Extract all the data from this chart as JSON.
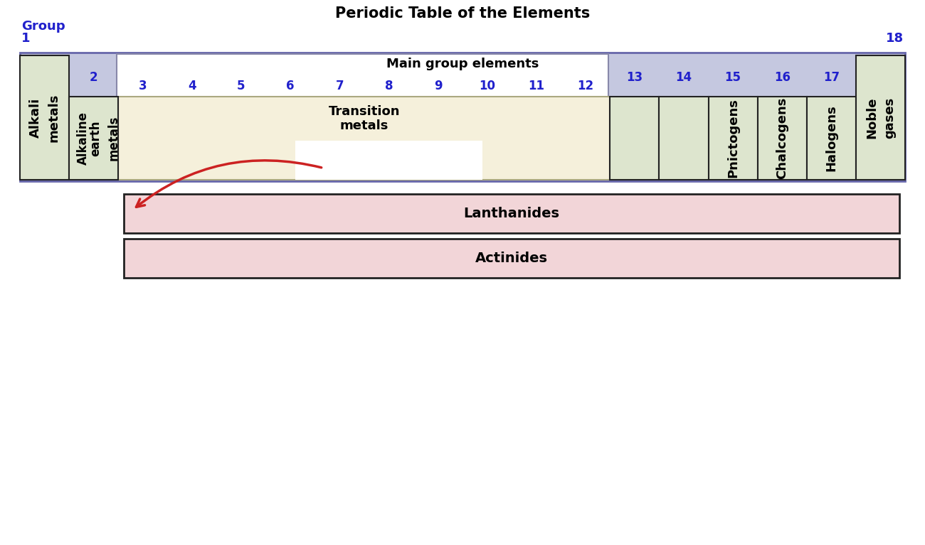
{
  "title": "Periodic Table of the Elements",
  "title_fontsize": 15,
  "title_color": "black",
  "title_fontweight": "bold",
  "bg_color": "white",
  "group_label": "Group",
  "group_label_color": "#2020cc",
  "group_label_fontsize": 13,
  "group_numbers_color": "#2020cc",
  "group_numbers_fontsize": 12,
  "main_group_bg": "#b8bcd8",
  "main_group_text": "Main group elements",
  "main_group_fontsize": 13,
  "main_group_fontweight": "bold",
  "transition_bg": "#f5f0db",
  "transition_text": "Transition\nmetals",
  "transition_fontsize": 13,
  "transition_fontweight": "bold",
  "alkali_bg": "#dde5ce",
  "alkali_label": "Alkali\nmetals",
  "alkali_fontsize": 13,
  "alkali_fontweight": "bold",
  "earth_alk_bg": "#dde5ce",
  "earth_alk_label_left": "Alkaline",
  "earth_alk_label_right": "earth\nmetals",
  "earth_alk_fontsize": 13,
  "earth_alk_fontweight": "bold",
  "pnictogens_bg": "#dde5ce",
  "pnictogens_text": "Pnictogens",
  "pnictogens_fontsize": 13,
  "pnictogens_fontweight": "bold",
  "chalcogens_bg": "#dde5ce",
  "chalcogens_text": "Chalcogens",
  "chalcogens_fontsize": 13,
  "chalcogens_fontweight": "bold",
  "halogens_bg": "#dde5ce",
  "halogens_text": "Halogens",
  "halogens_fontsize": 13,
  "halogens_fontweight": "bold",
  "noble_bg": "#dde5ce",
  "noble_text": "Noble\ngases",
  "noble_fontsize": 13,
  "noble_fontweight": "bold",
  "group13_bg": "#dde5ce",
  "group14_bg": "#dde5ce",
  "lanthanides_bg": "#f2d5d8",
  "lanthanides_text": "Lanthanides",
  "lanthanides_fontsize": 14,
  "lanthanides_fontweight": "bold",
  "actinides_bg": "#f2d5d8",
  "actinides_text": "Actinides",
  "actinides_fontsize": 14,
  "actinides_fontweight": "bold",
  "border_color": "#222222",
  "inner_border_color": "#7777aa",
  "arrow_color": "#cc2222",
  "white_box_bg": "#ffffff",
  "lavender_bg": "#c5c8e0"
}
